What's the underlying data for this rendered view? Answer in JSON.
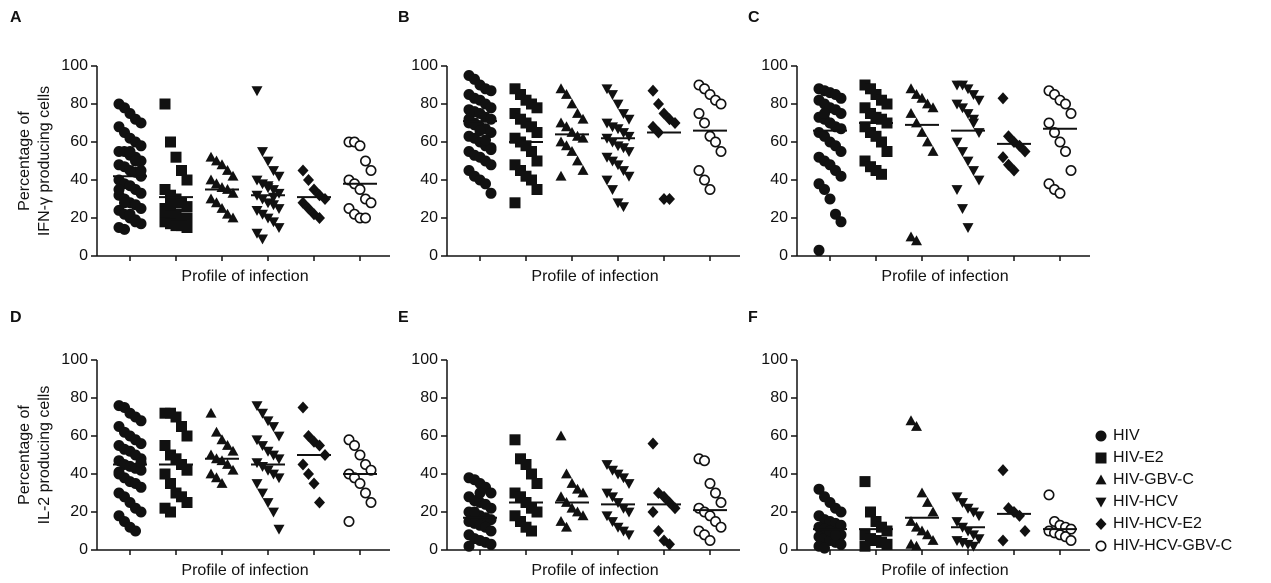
{
  "chart_data": [
    {
      "type": "dot",
      "panel": "A",
      "ylabel": [
        "Percentage of",
        "IFN-γ producing cells"
      ],
      "xlabel": "Profile of infection",
      "ylim": [
        0,
        100
      ],
      "yticks": [
        0,
        20,
        40,
        60,
        80,
        100
      ],
      "series": [
        {
          "values": [
            80,
            78,
            75,
            72,
            70,
            68,
            65,
            62,
            60,
            58,
            55,
            55,
            53,
            52,
            50,
            48,
            47,
            45,
            44,
            42,
            40,
            38,
            37,
            35,
            33,
            32,
            30,
            28,
            27,
            25,
            24,
            22,
            20,
            18,
            17,
            15,
            14,
            55,
            50,
            45,
            35,
            28,
            22,
            19
          ],
          "mean": 42
        },
        {
          "values": [
            80,
            60,
            52,
            45,
            40,
            35,
            32,
            30,
            28,
            26,
            25,
            24,
            22,
            20,
            20,
            18,
            17,
            16,
            16,
            15,
            23,
            27
          ],
          "mean": 31
        },
        {
          "values": [
            52,
            50,
            48,
            45,
            42,
            40,
            38,
            36,
            35,
            33,
            30,
            28,
            25,
            22,
            20
          ],
          "mean": 35
        },
        {
          "values": [
            87,
            55,
            50,
            45,
            42,
            40,
            38,
            36,
            35,
            33,
            32,
            30,
            28,
            27,
            25,
            24,
            22,
            20,
            18,
            15,
            12,
            9,
            37,
            31
          ],
          "mean": 32
        },
        {
          "values": [
            45,
            40,
            35,
            32,
            30,
            28,
            25,
            22,
            20
          ],
          "mean": 31
        },
        {
          "values": [
            60,
            60,
            58,
            50,
            45,
            40,
            38,
            35,
            30,
            28,
            25,
            22,
            20,
            20
          ],
          "mean": 38
        }
      ]
    },
    {
      "type": "dot",
      "panel": "B",
      "xlabel": "Profile of infection",
      "ylim": [
        0,
        100
      ],
      "yticks": [
        0,
        20,
        40,
        60,
        80,
        100
      ],
      "series": [
        {
          "values": [
            95,
            93,
            90,
            88,
            87,
            85,
            83,
            82,
            80,
            78,
            77,
            76,
            75,
            73,
            72,
            70,
            70,
            68,
            67,
            65,
            63,
            62,
            60,
            58,
            57,
            55,
            53,
            52,
            50,
            48,
            45,
            42,
            40,
            38,
            33,
            72,
            69,
            66,
            61,
            56
          ],
          "mean": 71
        },
        {
          "values": [
            88,
            85,
            82,
            80,
            78,
            75,
            72,
            70,
            68,
            65,
            62,
            60,
            58,
            55,
            50,
            48,
            45,
            42,
            40,
            35,
            28
          ],
          "mean": 60
        },
        {
          "values": [
            88,
            85,
            80,
            75,
            72,
            70,
            68,
            65,
            63,
            62,
            60,
            58,
            55,
            50,
            45,
            42
          ],
          "mean": 64
        },
        {
          "values": [
            88,
            85,
            80,
            75,
            72,
            70,
            68,
            67,
            65,
            63,
            62,
            60,
            58,
            57,
            55,
            52,
            50,
            48,
            45,
            42,
            40,
            35,
            28,
            26
          ],
          "mean": 62
        },
        {
          "values": [
            87,
            80,
            75,
            72,
            70,
            68,
            65,
            30,
            30
          ],
          "mean": 65
        },
        {
          "values": [
            90,
            88,
            85,
            82,
            80,
            75,
            70,
            63,
            60,
            55,
            45,
            40,
            35
          ],
          "mean": 66
        }
      ]
    },
    {
      "type": "dot",
      "panel": "C",
      "xlabel": "Profile of infection",
      "ylim": [
        0,
        100
      ],
      "yticks": [
        0,
        20,
        40,
        60,
        80,
        100
      ],
      "series": [
        {
          "values": [
            88,
            87,
            86,
            85,
            83,
            82,
            80,
            78,
            77,
            75,
            73,
            72,
            70,
            68,
            67,
            65,
            63,
            60,
            58,
            55,
            52,
            50,
            48,
            45,
            42,
            38,
            35,
            30,
            22,
            18,
            3,
            75,
            70
          ],
          "mean": 66
        },
        {
          "values": [
            90,
            88,
            85,
            82,
            80,
            78,
            75,
            73,
            72,
            70,
            68,
            65,
            63,
            60,
            55,
            50,
            47,
            45,
            43
          ],
          "mean": 70
        },
        {
          "values": [
            88,
            85,
            83,
            80,
            78,
            75,
            70,
            65,
            60,
            55,
            10,
            8
          ],
          "mean": 69
        },
        {
          "values": [
            90,
            90,
            88,
            85,
            82,
            80,
            78,
            75,
            70,
            65,
            60,
            55,
            50,
            45,
            40,
            35,
            25,
            15,
            72
          ],
          "mean": 66
        },
        {
          "values": [
            83,
            63,
            60,
            58,
            55,
            52,
            48,
            45
          ],
          "mean": 59
        },
        {
          "values": [
            87,
            85,
            82,
            80,
            75,
            70,
            65,
            60,
            55,
            45,
            38,
            35,
            33
          ],
          "mean": 67
        }
      ]
    },
    {
      "type": "dot",
      "panel": "D",
      "ylabel": [
        "Percentage of",
        "IL-2 producing cells"
      ],
      "xlabel": "Profile of infection",
      "ylim": [
        0,
        100
      ],
      "yticks": [
        0,
        20,
        40,
        60,
        80,
        100
      ],
      "series": [
        {
          "values": [
            76,
            75,
            72,
            70,
            68,
            65,
            62,
            60,
            58,
            56,
            55,
            53,
            52,
            50,
            48,
            47,
            45,
            44,
            43,
            42,
            40,
            38,
            36,
            35,
            33,
            30,
            28,
            25,
            22,
            20,
            18,
            15,
            12,
            10,
            46,
            41
          ],
          "mean": 45
        },
        {
          "values": [
            72,
            72,
            70,
            65,
            60,
            55,
            50,
            48,
            45,
            42,
            40,
            35,
            30,
            28,
            25,
            22,
            20
          ],
          "mean": 45
        },
        {
          "values": [
            72,
            62,
            58,
            55,
            52,
            50,
            48,
            47,
            45,
            42,
            40,
            38,
            35
          ],
          "mean": 48
        },
        {
          "values": [
            76,
            72,
            68,
            65,
            60,
            58,
            55,
            52,
            50,
            48,
            46,
            44,
            42,
            40,
            38,
            35,
            30,
            25,
            20,
            11
          ],
          "mean": 45
        },
        {
          "values": [
            75,
            60,
            57,
            55,
            50,
            45,
            40,
            35,
            25
          ],
          "mean": 50
        },
        {
          "values": [
            58,
            55,
            50,
            45,
            42,
            40,
            38,
            35,
            30,
            25,
            15
          ],
          "mean": 40
        }
      ]
    },
    {
      "type": "dot",
      "panel": "E",
      "xlabel": "Profile of infection",
      "ylim": [
        0,
        100
      ],
      "yticks": [
        0,
        20,
        40,
        60,
        80,
        100
      ],
      "series": [
        {
          "values": [
            38,
            37,
            35,
            33,
            30,
            28,
            26,
            25,
            24,
            22,
            20,
            19,
            18,
            17,
            16,
            15,
            14,
            13,
            12,
            10,
            8,
            6,
            5,
            4,
            3,
            2,
            20,
            30
          ],
          "mean": 17
        },
        {
          "values": [
            58,
            48,
            45,
            40,
            35,
            30,
            28,
            25,
            22,
            20,
            18,
            15,
            12,
            10
          ],
          "mean": 25
        },
        {
          "values": [
            60,
            40,
            35,
            32,
            30,
            28,
            25,
            22,
            20,
            18,
            15,
            12
          ],
          "mean": 25
        },
        {
          "values": [
            45,
            42,
            40,
            38,
            35,
            30,
            28,
            25,
            22,
            20,
            18,
            15,
            12,
            10,
            8
          ],
          "mean": 24
        },
        {
          "values": [
            56,
            30,
            28,
            25,
            22,
            20,
            10,
            5,
            3
          ],
          "mean": 24
        },
        {
          "values": [
            48,
            47,
            35,
            30,
            25,
            22,
            20,
            18,
            15,
            12,
            10,
            8,
            5
          ],
          "mean": 21
        }
      ]
    },
    {
      "type": "dot",
      "panel": "F",
      "xlabel": "Profile of infection",
      "ylim": [
        0,
        100
      ],
      "yticks": [
        0,
        20,
        40,
        60,
        80,
        100
      ],
      "series": [
        {
          "values": [
            32,
            28,
            25,
            22,
            20,
            18,
            16,
            15,
            14,
            13,
            12,
            11,
            10,
            9,
            8,
            7,
            6,
            5,
            4,
            3,
            2,
            1,
            10,
            8
          ],
          "mean": 11
        },
        {
          "values": [
            36,
            20,
            15,
            12,
            10,
            8,
            6,
            5,
            4,
            3,
            2
          ],
          "mean": 11
        },
        {
          "values": [
            68,
            65,
            30,
            25,
            20,
            15,
            12,
            10,
            8,
            5,
            3,
            2
          ],
          "mean": 17
        },
        {
          "values": [
            28,
            25,
            22,
            20,
            18,
            15,
            12,
            10,
            8,
            6,
            5,
            4,
            3,
            2
          ],
          "mean": 12
        },
        {
          "values": [
            42,
            22,
            20,
            18,
            10,
            5
          ],
          "mean": 19
        },
        {
          "values": [
            29,
            15,
            13,
            12,
            11,
            10,
            9,
            8,
            7,
            5
          ],
          "mean": 11
        }
      ]
    }
  ],
  "legend": [
    {
      "name": "HIV",
      "marker": "circle"
    },
    {
      "name": "HIV-E2",
      "marker": "square"
    },
    {
      "name": "HIV-GBV-C",
      "marker": "triangle-up"
    },
    {
      "name": "HIV-HCV",
      "marker": "triangle-down"
    },
    {
      "name": "HIV-HCV-E2",
      "marker": "diamond"
    },
    {
      "name": "HIV-HCV-GBV-C",
      "marker": "open-circle"
    }
  ]
}
